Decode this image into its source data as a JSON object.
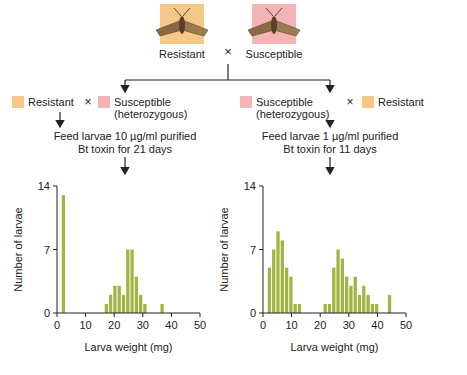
{
  "diagram": {
    "parents": {
      "left": "Resistant",
      "cross": "×",
      "right": "Susceptible"
    },
    "crosses": [
      {
        "first": "Resistant",
        "cross": "×",
        "second": [
          "Susceptible",
          "(heterozygous)"
        ],
        "treatment": [
          "Feed larvae 10 µg/ml purified",
          "Bt toxin for 21 days"
        ]
      },
      {
        "first": [
          "Susceptible",
          "(heterozygous)"
        ],
        "cross": "×",
        "second": "Resistant",
        "treatment": [
          "Feed larvae 1 µg/ml purified",
          "Bt toxin for 11 days"
        ]
      }
    ]
  },
  "chart_data": [
    {
      "type": "histogram",
      "xlabel": "Larva weight (mg)",
      "ylabel": "Number of larvae",
      "color": "#a4b443",
      "bins": [
        0,
        1.5,
        3,
        4.5,
        6,
        7.5,
        9,
        10.5,
        12,
        13.5,
        15,
        16.5,
        18,
        19.5,
        21,
        22.5,
        24,
        25.5,
        27,
        28.5,
        30,
        31.5,
        33,
        34.5,
        36,
        37.5,
        39,
        40.5,
        42,
        43.5,
        45
      ],
      "values": [
        0,
        13,
        0,
        0,
        0,
        0,
        0,
        0,
        0,
        0,
        0,
        1,
        2,
        3,
        3,
        2,
        7,
        7,
        4,
        2,
        1,
        0,
        0,
        0,
        1,
        0,
        0,
        0,
        0,
        0
      ],
      "xlim": [
        0,
        50
      ],
      "ylim": [
        0,
        14
      ],
      "xticks": [
        0,
        10,
        20,
        30,
        40,
        50
      ],
      "yticks": [
        0,
        7,
        14
      ]
    },
    {
      "type": "histogram",
      "xlabel": "Larva weight (mg)",
      "ylabel": "Number of larvae",
      "color": "#a4b443",
      "bins": [
        0,
        1.5,
        3,
        4.5,
        6,
        7.5,
        9,
        10.5,
        12,
        13.5,
        15,
        16.5,
        18,
        19.5,
        21,
        22.5,
        24,
        25.5,
        27,
        28.5,
        30,
        31.5,
        33,
        34.5,
        36,
        37.5,
        39,
        40.5,
        42,
        43.5,
        45
      ],
      "values": [
        0,
        5,
        7,
        9,
        8,
        5,
        4,
        1,
        1,
        0,
        0,
        0,
        0,
        0,
        1,
        1,
        5,
        7,
        6,
        4,
        3,
        4,
        2,
        3,
        2,
        1,
        1,
        0,
        0,
        2
      ],
      "xlim": [
        0,
        50
      ],
      "ylim": [
        0,
        14
      ],
      "xticks": [
        0,
        10,
        20,
        30,
        40,
        50
      ],
      "yticks": [
        0,
        7,
        14
      ]
    }
  ]
}
